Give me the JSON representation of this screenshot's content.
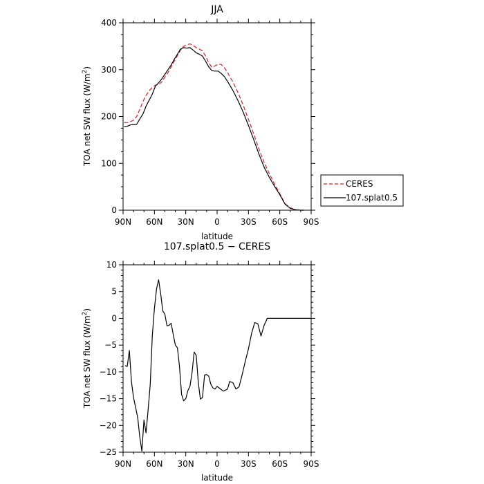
{
  "chart_data": [
    {
      "type": "line",
      "title": "JJA",
      "xlabel": "latitude",
      "ylabel": "TOA net SW flux (W/m²)",
      "ylabel_prefix": "TOA net SW flux (W/m",
      "ylabel_sup": "2",
      "ylabel_suffix": ")",
      "xlim": [
        90,
        -90
      ],
      "ylim": [
        0,
        400
      ],
      "x_ticks": [
        90,
        60,
        30,
        0,
        -30,
        -60,
        -90
      ],
      "x_tick_labels": [
        "90N",
        "60N",
        "30N",
        "0",
        "30S",
        "60S",
        "90S"
      ],
      "y_ticks": [
        0,
        100,
        200,
        300,
        400
      ],
      "y_tick_labels": [
        "0",
        "100",
        "200",
        "300",
        "400"
      ],
      "legend_position": "outside-right",
      "series": [
        {
          "name": "CERES",
          "color": "#e41a1c",
          "dash": "dashed",
          "x": [
            89,
            86,
            83,
            80,
            77,
            74,
            71,
            68,
            65,
            62,
            59,
            56,
            53,
            50,
            47,
            44,
            41,
            38,
            35,
            32,
            29,
            26,
            23,
            20,
            17,
            14,
            11,
            8,
            5,
            2,
            -1,
            -4,
            -7,
            -10,
            -15,
            -20,
            -25,
            -30,
            -35,
            -40,
            -45,
            -50,
            -55,
            -60,
            -65,
            -70,
            -75,
            -80,
            -83
          ],
          "y": [
            187,
            187,
            189,
            192,
            200,
            215,
            232,
            245,
            255,
            262,
            267,
            268,
            274,
            284,
            294,
            306,
            318,
            330,
            342,
            350,
            353,
            355,
            352,
            347,
            344,
            340,
            329,
            315,
            305,
            308,
            312,
            311,
            304,
            294,
            274,
            251,
            224,
            194,
            163,
            131,
            102,
            78,
            56,
            35,
            14,
            5,
            1,
            0,
            0
          ]
        },
        {
          "name": "107.splat0.5",
          "color": "#000000",
          "dash": "solid",
          "x": [
            89,
            86,
            83,
            80,
            77,
            74,
            71,
            68,
            65,
            62,
            59,
            56,
            53,
            50,
            47,
            44,
            41,
            38,
            35,
            32,
            29,
            26,
            23,
            20,
            17,
            14,
            11,
            8,
            5,
            2,
            -1,
            -4,
            -7,
            -10,
            -15,
            -20,
            -25,
            -30,
            -35,
            -40,
            -45,
            -50,
            -55,
            -60,
            -65,
            -70,
            -75,
            -80,
            -83
          ],
          "y": [
            178,
            179,
            182,
            183,
            183,
            195,
            205,
            222,
            235,
            248,
            265,
            272,
            280,
            290,
            300,
            310,
            322,
            333,
            344,
            347,
            346,
            347,
            342,
            336,
            333,
            329,
            318,
            306,
            298,
            297,
            297,
            292,
            285,
            275,
            256,
            234,
            209,
            181,
            151,
            120,
            92,
            70,
            51,
            33,
            13,
            4,
            1,
            0,
            0
          ]
        }
      ]
    },
    {
      "type": "line",
      "title": "107.splat0.5 − CERES",
      "xlabel": "latitude",
      "ylabel": "TOA net SW flux (W/m²)",
      "ylabel_prefix": "TOA net SW flux (W/m",
      "ylabel_sup": "2",
      "ylabel_suffix": ")",
      "xlim": [
        90,
        -90
      ],
      "ylim": [
        -25,
        10
      ],
      "x_ticks": [
        90,
        60,
        30,
        0,
        -30,
        -60,
        -90
      ],
      "x_tick_labels": [
        "90N",
        "60N",
        "30N",
        "0",
        "30S",
        "60S",
        "90S"
      ],
      "y_ticks": [
        -25,
        -20,
        -15,
        -10,
        -5,
        0,
        5,
        10
      ],
      "y_tick_labels": [
        "−25",
        "−20",
        "−15",
        "−10",
        "−5",
        "0",
        "5",
        "10"
      ],
      "series": [
        {
          "color": "#000000",
          "dash": "solid",
          "x": [
            88,
            86,
            84,
            82,
            80,
            78,
            76,
            74,
            72,
            70,
            68,
            66,
            64,
            62,
            60,
            58,
            56,
            54,
            52,
            50,
            48,
            46,
            44,
            42,
            40,
            38,
            36,
            34,
            32,
            30,
            28,
            26,
            24,
            22,
            20,
            18,
            16,
            14,
            12,
            10,
            8,
            6,
            4,
            2,
            0,
            -2,
            -4,
            -6,
            -8,
            -10,
            -12,
            -15,
            -18,
            -21,
            -24,
            -27,
            -30,
            -33,
            -36,
            -39,
            -42,
            -45,
            -48,
            -51,
            -54,
            -57,
            -60,
            -63,
            -66,
            -69,
            -72,
            -75,
            -78,
            -81,
            -84,
            -87,
            -90
          ],
          "y": [
            -8.8,
            -9.0,
            -6.0,
            -11.8,
            -14.8,
            -16.6,
            -18.6,
            -22.2,
            -24.8,
            -19.0,
            -21.4,
            -17.0,
            -12.3,
            -3.2,
            1.8,
            5.5,
            7.2,
            4.6,
            1.4,
            0.8,
            -1.4,
            -1.3,
            -0.9,
            -3.0,
            -5.0,
            -5.5,
            -9.0,
            -14.2,
            -15.4,
            -15.0,
            -13.5,
            -12.7,
            -10.2,
            -6.3,
            -6.9,
            -12.0,
            -15.1,
            -14.8,
            -10.6,
            -10.5,
            -10.8,
            -12.3,
            -13.0,
            -13.2,
            -12.7,
            -13.0,
            -13.3,
            -13.6,
            -13.4,
            -13.2,
            -11.8,
            -12.0,
            -13.2,
            -12.8,
            -10.5,
            -8.0,
            -5.7,
            -2.8,
            -0.8,
            -1.0,
            -3.3,
            -1.3,
            0.0,
            0.0,
            0.0,
            0.0,
            0.0,
            0.0,
            0.0,
            0.0,
            0.0,
            0.0,
            0.0,
            0.0,
            0.0,
            0.0,
            0.0
          ]
        }
      ]
    }
  ]
}
